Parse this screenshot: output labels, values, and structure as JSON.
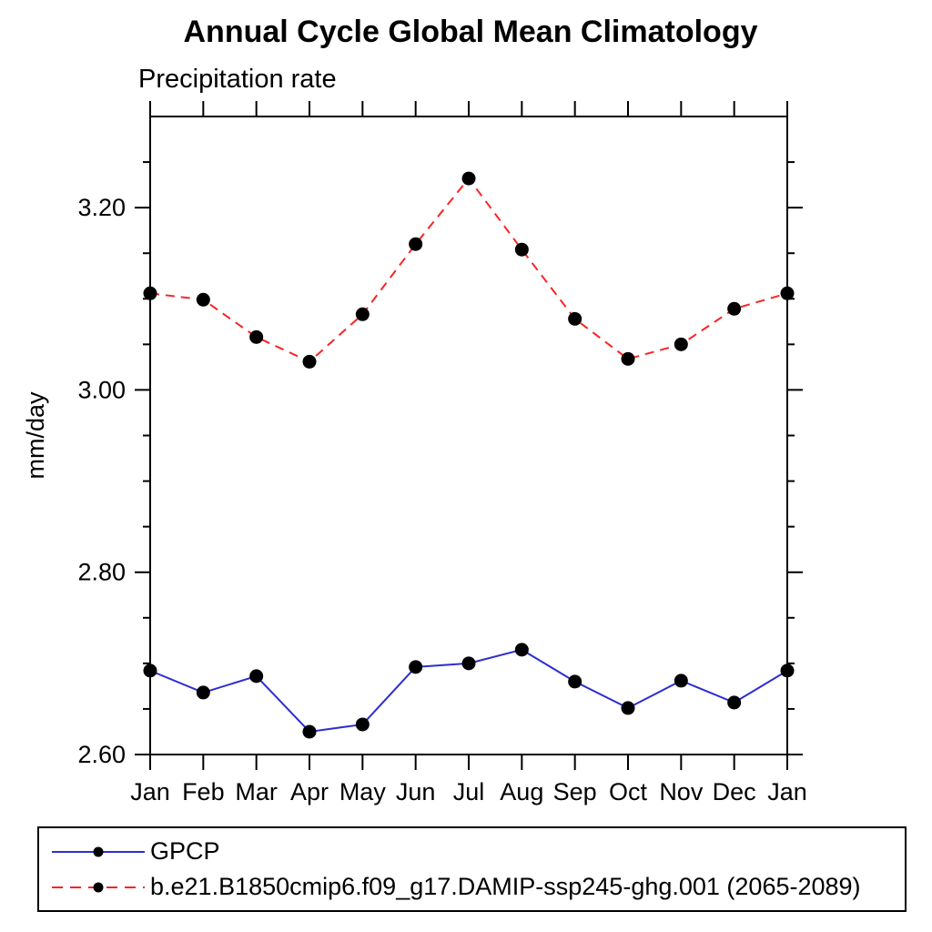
{
  "title": "Annual Cycle Global Mean Climatology",
  "subtitle": "Precipitation rate",
  "colors": {
    "axis": "#000000",
    "marker": "#000000",
    "gpcp_blue": "#2d2dd2",
    "model_red": "#fa2323"
  },
  "chart_data": {
    "type": "line",
    "title": "Annual Cycle Global Mean Climatology",
    "subtitle": "Precipitation rate",
    "ylabel": "mm/day",
    "xlabel": "",
    "categories": [
      "Jan",
      "Feb",
      "Mar",
      "Apr",
      "May",
      "Jun",
      "Jul",
      "Aug",
      "Sep",
      "Oct",
      "Nov",
      "Dec",
      "Jan"
    ],
    "series": [
      {
        "name": "GPCP",
        "color": "#2d2dd2",
        "style": "solid",
        "marker": "filled-circle",
        "values": [
          2.692,
          2.668,
          2.686,
          2.625,
          2.633,
          2.696,
          2.7,
          2.715,
          2.68,
          2.651,
          2.681,
          2.657,
          2.692
        ]
      },
      {
        "name": "b.e21.B1850cmip6.f09_g17.DAMIP-ssp245-ghg.001 (2065-2089)",
        "color": "#fa2323",
        "style": "dashed",
        "marker": "filled-circle",
        "values": [
          3.106,
          3.099,
          3.058,
          3.031,
          3.083,
          3.16,
          3.232,
          3.154,
          3.078,
          3.034,
          3.05,
          3.089,
          3.106
        ]
      }
    ],
    "ylim": [
      2.6,
      3.3
    ],
    "yticks_major": [
      2.6,
      2.8,
      3.0,
      3.2
    ],
    "ytick_labels": [
      "2.60",
      "2.80",
      "3.00",
      "3.20"
    ],
    "yminor_step": 0.05,
    "grid": false,
    "frame": true,
    "ticks": "outward-all-four-sides",
    "legend_position": "bottom-left-box"
  },
  "legend": {
    "entries": [
      {
        "label": "GPCP"
      },
      {
        "label": "b.e21.B1850cmip6.f09_g17.DAMIP-ssp245-ghg.001 (2065-2089)"
      }
    ]
  }
}
